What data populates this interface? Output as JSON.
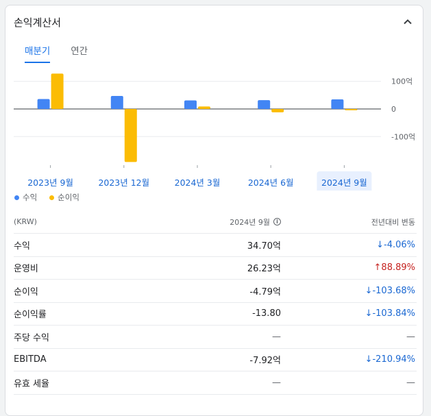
{
  "header": {
    "title": "손익계산서"
  },
  "tabs": [
    {
      "label": "매분기",
      "active": true
    },
    {
      "label": "연간",
      "active": false
    }
  ],
  "chart_data": {
    "type": "bar",
    "categories": [
      "2023년 9월",
      "2023년 12월",
      "2024년 3월",
      "2024년 6월",
      "2024년 9월"
    ],
    "selected_category": "2024년 9월",
    "series": [
      {
        "name": "수익",
        "color": "#4285f4",
        "values": [
          36,
          47,
          31,
          32,
          34.7
        ]
      },
      {
        "name": "순이익",
        "color": "#fbbc04",
        "values": [
          128,
          -192,
          9,
          -12,
          -4.79
        ]
      }
    ],
    "y_ticks": [
      {
        "value": 100,
        "label": "100억"
      },
      {
        "value": 0,
        "label": "0"
      },
      {
        "value": -100,
        "label": "-100억"
      }
    ],
    "ylim": [
      -200,
      130
    ]
  },
  "legend": [
    {
      "label": "수익",
      "color": "#4285f4"
    },
    {
      "label": "순이익",
      "color": "#fbbc04"
    }
  ],
  "table": {
    "head": {
      "label": "(KRW)",
      "period": "2024년 9월",
      "change": "전년대비 변동"
    },
    "rows": [
      {
        "label": "수익",
        "value": "34.70억",
        "change": "↓-4.06%",
        "trend": "neg"
      },
      {
        "label": "운영비",
        "value": "26.23억",
        "change": "↑88.89%",
        "trend": "pos"
      },
      {
        "label": "순이익",
        "value": "-4.79억",
        "change": "↓-103.68%",
        "trend": "neg"
      },
      {
        "label": "순이익률",
        "value": "-13.80",
        "change": "↓-103.84%",
        "trend": "neg"
      },
      {
        "label": "주당 수익",
        "value": "—",
        "change": "—",
        "trend": "none"
      },
      {
        "label": "EBITDA",
        "value": "-7.92억",
        "change": "↓-210.94%",
        "trend": "neg"
      },
      {
        "label": "유효 세율",
        "value": "—",
        "change": "—",
        "trend": "none"
      }
    ]
  }
}
